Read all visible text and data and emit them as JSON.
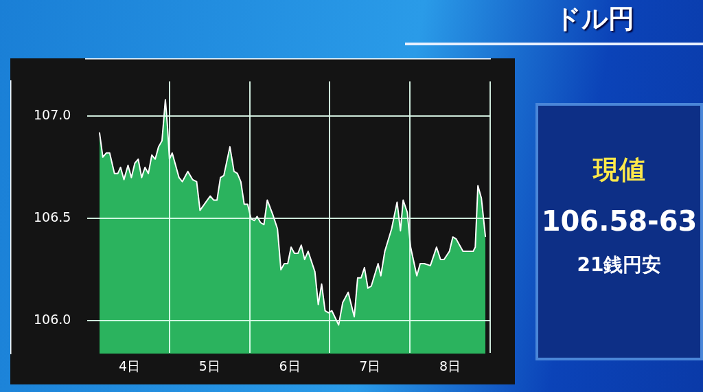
{
  "chart_data": [
    {
      "type": "area",
      "x": [
        3.627,
        3.669,
        3.712,
        3.754,
        3.814,
        3.856,
        3.89,
        3.932,
        3.983,
        4.025,
        4.068,
        4.11,
        4.153,
        4.195,
        4.237,
        4.28,
        4.322,
        4.364,
        4.407,
        4.449,
        4.475,
        4.5,
        4.534,
        4.619,
        4.661,
        4.729,
        4.788,
        4.839,
        4.881,
        5.008,
        5.051,
        5.093,
        5.136,
        5.178,
        5.254,
        5.305,
        5.347,
        5.39,
        5.432,
        5.475,
        5.517,
        5.559,
        5.593,
        5.636,
        5.678,
        5.72,
        5.788,
        5.847,
        5.89,
        5.932,
        5.975,
        6.017,
        6.059,
        6.102,
        6.144,
        6.186,
        6.229,
        6.314,
        6.356,
        6.398,
        6.441,
        6.483,
        6.525,
        6.61,
        6.661,
        6.729,
        6.805,
        6.847,
        6.89,
        6.932,
        6.975,
        7.017,
        7.102,
        7.136,
        7.186,
        7.271,
        7.339,
        7.381,
        7.415,
        7.466,
        7.508,
        7.585,
        7.627,
        7.678,
        7.754,
        7.831,
        7.881,
        7.924,
        7.992,
        8.034,
        8.076,
        8.161,
        8.288,
        8.314,
        8.347,
        8.39,
        8.441
      ],
      "series": [
        {
          "color": "#2bb35e",
          "values": [
            106.92,
            106.8,
            106.82,
            106.82,
            106.72,
            106.72,
            106.75,
            106.69,
            106.76,
            106.7,
            106.77,
            106.79,
            106.7,
            106.75,
            106.72,
            106.81,
            106.79,
            106.85,
            106.88,
            107.08,
            106.95,
            106.79,
            106.82,
            106.7,
            106.68,
            106.73,
            106.69,
            106.68,
            106.54,
            106.61,
            106.59,
            106.59,
            106.7,
            106.71,
            106.85,
            106.73,
            106.72,
            106.68,
            106.57,
            106.57,
            106.5,
            106.49,
            106.51,
            106.48,
            106.47,
            106.59,
            106.52,
            106.45,
            106.25,
            106.28,
            106.28,
            106.36,
            106.33,
            106.33,
            106.37,
            106.3,
            106.34,
            106.24,
            106.08,
            106.18,
            106.05,
            106.04,
            106.05,
            105.98,
            106.09,
            106.14,
            106.02,
            106.21,
            106.21,
            106.26,
            106.16,
            106.17,
            106.28,
            106.22,
            106.34,
            106.45,
            106.58,
            106.44,
            106.59,
            106.53,
            106.36,
            106.22,
            106.28,
            106.28,
            106.27,
            106.36,
            106.3,
            106.3,
            106.34,
            106.41,
            106.4,
            106.34,
            106.34,
            106.36,
            106.66,
            106.6,
            106.41
          ]
        }
      ],
      "xlim": [
        3.46,
        8.5
      ],
      "xticks": [
        {
          "value": 4,
          "label": "4日"
        },
        {
          "value": 4.5,
          "label": null
        },
        {
          "value": 5,
          "label": "5日"
        },
        {
          "value": 5.5,
          "label": null
        },
        {
          "value": 6,
          "label": "6日"
        },
        {
          "value": 6.5,
          "label": null
        },
        {
          "value": 7,
          "label": "7日"
        },
        {
          "value": 7.5,
          "label": null
        },
        {
          "value": 8,
          "label": "8日"
        },
        {
          "value": 8.5,
          "label": null
        }
      ],
      "ylim": [
        105.84,
        107.17
      ],
      "yticks": [
        {
          "value": 106,
          "label": "106.0"
        },
        {
          "value": 106.5,
          "label": "106.5"
        },
        {
          "value": 107,
          "label": "107.0"
        }
      ],
      "grid": true,
      "legend": false,
      "marker": "none",
      "line_style": "solid"
    },
    {
      "type": "other",
      "title": "ドル円",
      "subtitle": "現値",
      "annotations": [
        "106.58-63",
        "21銭円安"
      ]
    }
  ]
}
